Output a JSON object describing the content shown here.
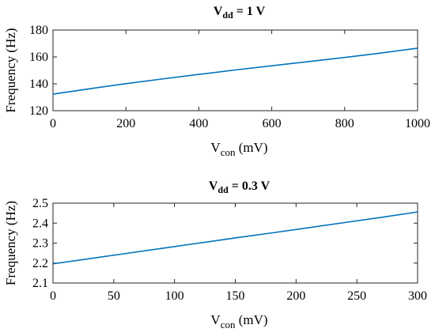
{
  "chart_data": [
    {
      "type": "line",
      "title": {
        "main": "V",
        "sub": "dd",
        "rest": " = 1 V"
      },
      "xlabel": {
        "main": "V",
        "sub": "con",
        "rest": " (mV)"
      },
      "ylabel": "Frequency (Hz)",
      "xlim": [
        0,
        1000
      ],
      "ylim": [
        120,
        180
      ],
      "xticks": [
        0,
        200,
        400,
        600,
        800,
        1000
      ],
      "yticks": [
        120,
        140,
        160,
        180
      ],
      "grid": false,
      "series": [
        {
          "color": "#0072BD",
          "x": [
            0,
            100,
            200,
            300,
            400,
            500,
            600,
            700,
            800,
            900,
            1000
          ],
          "y": [
            132.3,
            136.3,
            140.1,
            143.6,
            147.0,
            150.3,
            153.4,
            156.5,
            159.6,
            162.9,
            166.5
          ]
        }
      ]
    },
    {
      "type": "line",
      "title": {
        "main": "V",
        "sub": "dd",
        "rest": " = 0.3 V"
      },
      "xlabel": {
        "main": "V",
        "sub": "con",
        "rest": " (mV)"
      },
      "ylabel": "Frequency (Hz)",
      "xlim": [
        0,
        300
      ],
      "ylim": [
        2.1,
        2.5
      ],
      "xticks": [
        0,
        50,
        100,
        150,
        200,
        250,
        300
      ],
      "yticks": [
        2.1,
        2.2,
        2.3,
        2.4,
        2.5
      ],
      "grid": false,
      "series": [
        {
          "color": "#0072BD",
          "x": [
            0,
            30,
            60,
            90,
            120,
            150,
            180,
            210,
            240,
            270,
            300
          ],
          "y": [
            2.196,
            2.222,
            2.248,
            2.274,
            2.3,
            2.326,
            2.351,
            2.377,
            2.403,
            2.429,
            2.456
          ]
        }
      ]
    }
  ]
}
